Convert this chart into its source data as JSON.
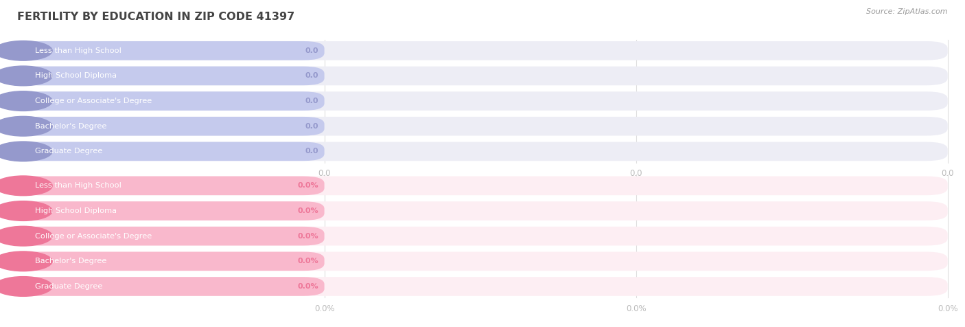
{
  "title": "FERTILITY BY EDUCATION IN ZIP CODE 41397",
  "source": "Source: ZipAtlas.com",
  "categories": [
    "Less than High School",
    "High School Diploma",
    "College or Associate's Degree",
    "Bachelor's Degree",
    "Graduate Degree"
  ],
  "top_values": [
    0.0,
    0.0,
    0.0,
    0.0,
    0.0
  ],
  "bottom_values": [
    0.0,
    0.0,
    0.0,
    0.0,
    0.0
  ],
  "top_bar_color": "#c5caed",
  "top_bar_bg": "#ededf5",
  "top_left_circle_color": "#9599cc",
  "bottom_bar_color": "#f9b8cc",
  "bottom_bar_bg": "#fdeef3",
  "bottom_left_circle_color": "#ee7799",
  "bg_color": "#ffffff",
  "label_color": "#555555",
  "value_label_color_top": "#9599cc",
  "value_label_color_bottom": "#ee7799",
  "axis_label_color": "#bbbbbb",
  "title_color": "#444444",
  "source_color": "#999999",
  "tick_labels_top": [
    "0.0",
    "0.0",
    "0.0"
  ],
  "tick_labels_bottom": [
    "0.0%",
    "0.0%",
    "0.0%"
  ],
  "grid_color": "#dddddd"
}
